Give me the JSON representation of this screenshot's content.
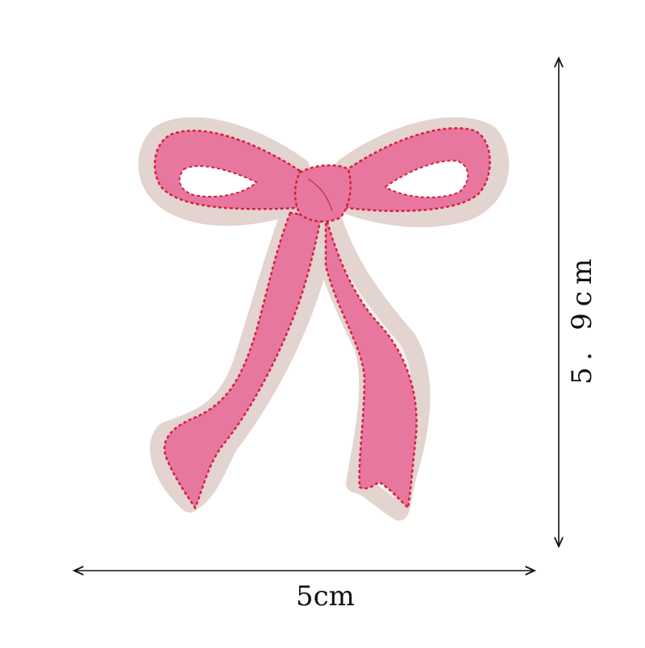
{
  "dimensions": {
    "width_label": "5cm",
    "height_label": "5. 9cm"
  },
  "colors": {
    "bow_fill": "#e8779f",
    "bow_stitch": "#d4213b",
    "backing": "#f7f1ee",
    "backing_edge": "#e6d9d6",
    "dimension_line": "#111111"
  }
}
